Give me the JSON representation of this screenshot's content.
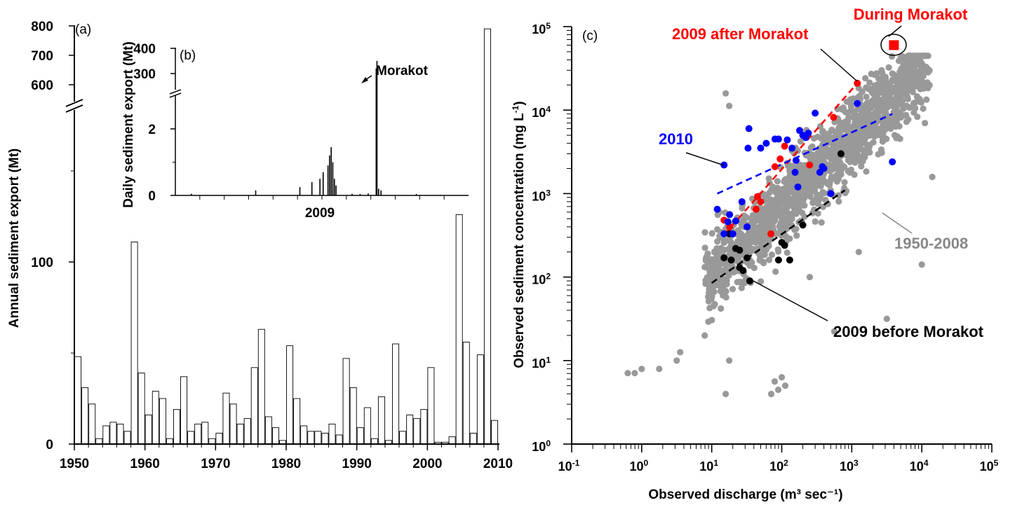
{
  "chart_data": [
    {
      "id": "a",
      "type": "bar",
      "panel_label": "(a)",
      "ylabel": "Annual sediment export (Mt)",
      "xlabel": "",
      "axis_break": true,
      "xlim": [
        1950,
        2010
      ],
      "ylim_lower": [
        0,
        150
      ],
      "ylim_upper": [
        550,
        800
      ],
      "x_ticks": [
        "1950",
        "1960",
        "1970",
        "1980",
        "1990",
        "2000",
        "2010"
      ],
      "y_ticks_lower": [
        "0",
        "100"
      ],
      "y_ticks_upper": [
        "600",
        "700",
        "800"
      ],
      "years": [
        1951,
        1952,
        1953,
        1954,
        1955,
        1956,
        1957,
        1958,
        1959,
        1960,
        1961,
        1962,
        1963,
        1964,
        1965,
        1966,
        1967,
        1968,
        1969,
        1970,
        1971,
        1972,
        1973,
        1974,
        1975,
        1976,
        1977,
        1978,
        1979,
        1980,
        1981,
        1982,
        1983,
        1984,
        1985,
        1986,
        1987,
        1988,
        1989,
        1990,
        1991,
        1992,
        1993,
        1994,
        1995,
        1996,
        1997,
        1998,
        1999,
        2000,
        2001,
        2002,
        2003,
        2004,
        2005,
        2006,
        2007,
        2008,
        2009,
        2010
      ],
      "values": [
        48,
        31,
        22,
        3,
        10,
        12,
        11,
        7,
        111,
        39,
        16,
        29,
        25,
        3,
        19,
        37,
        7,
        11,
        12,
        3,
        6,
        28,
        22,
        11,
        14,
        42,
        63,
        15,
        9,
        2,
        54,
        25,
        10,
        7,
        7,
        6,
        11,
        5,
        47,
        31,
        9,
        20,
        3,
        26,
        2,
        55,
        7,
        16,
        14,
        19,
        42,
        1,
        1,
        4,
        126,
        56,
        6,
        49,
        790,
        13
      ]
    },
    {
      "id": "b",
      "type": "bar",
      "panel_label": "(b)",
      "ylabel": "Daily sediment export (Mt)",
      "xlabel": "2009",
      "axis_break": true,
      "y_ticks_lower": [
        "0",
        "2"
      ],
      "y_ticks_upper": [
        "300",
        "400"
      ],
      "annotation": "Morakot",
      "events": [
        {
          "day": 20,
          "value": 0.05
        },
        {
          "day": 100,
          "value": 0.15
        },
        {
          "day": 155,
          "value": 0.25
        },
        {
          "day": 170,
          "value": 0.4
        },
        {
          "day": 180,
          "value": 0.5
        },
        {
          "day": 184,
          "value": 0.7
        },
        {
          "day": 190,
          "value": 0.9
        },
        {
          "day": 192,
          "value": 1.2
        },
        {
          "day": 194,
          "value": 1.45
        },
        {
          "day": 196,
          "value": 1.0
        },
        {
          "day": 198,
          "value": 0.5
        },
        {
          "day": 200,
          "value": 0.3
        },
        {
          "day": 220,
          "value": 0.05
        },
        {
          "day": 230,
          "value": 0.04
        },
        {
          "day": 240,
          "value": 0.06
        },
        {
          "day": 250,
          "value": 320
        },
        {
          "day": 251,
          "value": 350
        },
        {
          "day": 253,
          "value": 0.2
        },
        {
          "day": 256,
          "value": 0.15
        },
        {
          "day": 300,
          "value": 0.04
        },
        {
          "day": 330,
          "value": 0.02
        }
      ]
    },
    {
      "id": "c",
      "type": "scatter",
      "panel_label": "(c)",
      "xlabel": "Observed discharge (m³ sec⁻¹)",
      "ylabel": "Observed sediment concentration (mg L⁻¹)",
      "xscale": "log",
      "yscale": "log",
      "xlim": [
        0.1,
        100000
      ],
      "ylim": [
        1,
        100000
      ],
      "x_ticks": [
        [
          "10",
          "-1"
        ],
        [
          "10",
          "0"
        ],
        [
          "10",
          "1"
        ],
        [
          "10",
          "2"
        ],
        [
          "10",
          "3"
        ],
        [
          "10",
          "4"
        ],
        [
          "10",
          "5"
        ]
      ],
      "y_ticks": [
        [
          "10",
          "0"
        ],
        [
          "10",
          "1"
        ],
        [
          "10",
          "2"
        ],
        [
          "10",
          "3"
        ],
        [
          "10",
          "4"
        ],
        [
          "10",
          "5"
        ]
      ],
      "series": [
        {
          "name": "1950-2008",
          "color": "#999999",
          "generated_cloud": true
        },
        {
          "name": "2009 before Morakot",
          "color": "#000000",
          "points": [
            [
              15,
              170
            ],
            [
              18,
              330
            ],
            [
              19,
              160
            ],
            [
              22,
              220
            ],
            [
              25,
              210
            ],
            [
              25,
              130
            ],
            [
              28,
              120
            ],
            [
              32,
              170
            ],
            [
              35,
              90
            ],
            [
              90,
              160
            ],
            [
              100,
              260
            ],
            [
              110,
              240
            ],
            [
              130,
              160
            ],
            [
              200,
              420
            ],
            [
              700,
              3000
            ]
          ],
          "trend": [
            [
              10,
              85
            ],
            [
              800,
              1100
            ]
          ]
        },
        {
          "name": "2009 after Morakot",
          "color": "#ff0000",
          "points": [
            [
              15,
              480
            ],
            [
              18,
              400
            ],
            [
              43,
              650
            ],
            [
              45,
              920
            ],
            [
              50,
              800
            ],
            [
              70,
              330
            ],
            [
              80,
              2100
            ],
            [
              95,
              2600
            ],
            [
              110,
              3700
            ],
            [
              250,
              2200
            ],
            [
              550,
              8200
            ],
            [
              1200,
              21000
            ]
          ],
          "trend": [
            [
              15,
              320
            ],
            [
              1200,
              21000
            ]
          ]
        },
        {
          "name": "2010",
          "color": "#0000ff",
          "points": [
            [
              12,
              650
            ],
            [
              15,
              330
            ],
            [
              15,
              2200
            ],
            [
              17,
              460
            ],
            [
              18,
              560
            ],
            [
              20,
              330
            ],
            [
              22,
              470
            ],
            [
              27,
              800
            ],
            [
              32,
              400
            ],
            [
              33,
              3500
            ],
            [
              34,
              6000
            ],
            [
              50,
              3500
            ],
            [
              60,
              4000
            ],
            [
              80,
              4500
            ],
            [
              90,
              4500
            ],
            [
              120,
              4400
            ],
            [
              140,
              3500
            ],
            [
              155,
              1800
            ],
            [
              160,
              2500
            ],
            [
              170,
              1200
            ],
            [
              180,
              5700
            ],
            [
              200,
              5000
            ],
            [
              220,
              4700
            ],
            [
              240,
              5300
            ],
            [
              300,
              9200
            ],
            [
              350,
              1800
            ],
            [
              380,
              2100
            ],
            [
              400,
              2000
            ],
            [
              500,
              1000
            ],
            [
              1200,
              12000
            ],
            [
              3800,
              2400
            ]
          ],
          "trend": [
            [
              12,
              1000
            ],
            [
              3800,
              9000
            ]
          ]
        },
        {
          "name": "During Morakot",
          "color": "#ff0000",
          "marker": "square",
          "points": [
            [
              4000,
              60000
            ]
          ]
        }
      ],
      "annotations": [
        "2009 after Morakot",
        "During Morakot",
        "2010",
        "1950-2008",
        "2009 before Morakot"
      ]
    }
  ]
}
